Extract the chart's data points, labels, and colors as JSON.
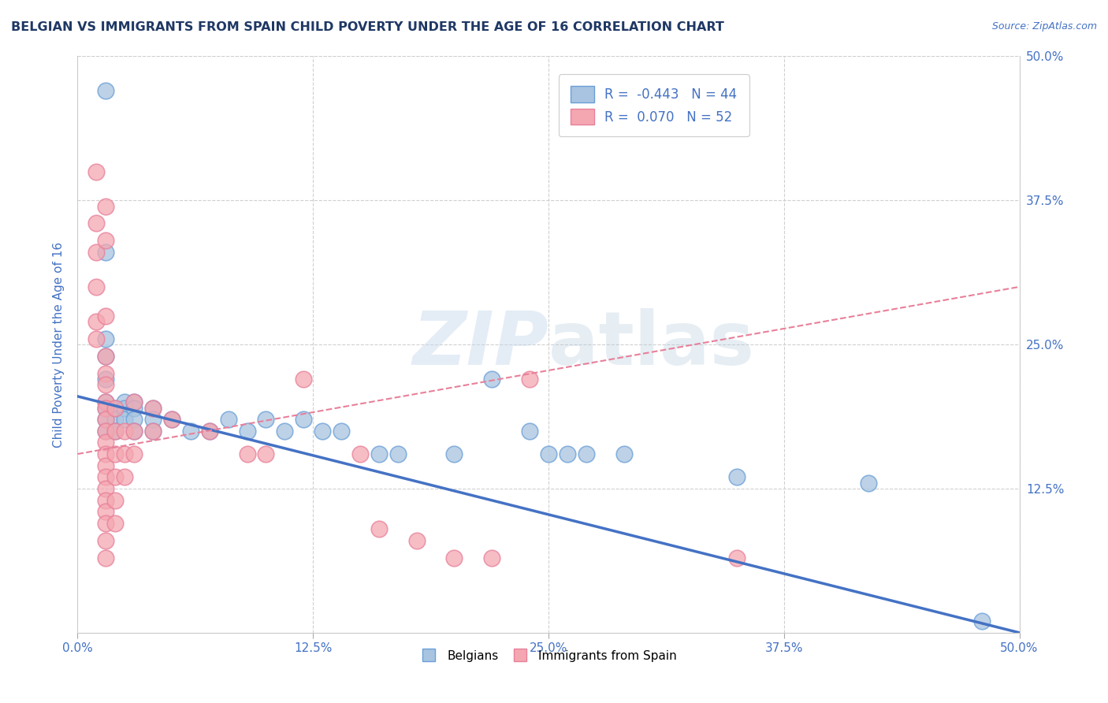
{
  "title": "BELGIAN VS IMMIGRANTS FROM SPAIN CHILD POVERTY UNDER THE AGE OF 16 CORRELATION CHART",
  "source": "Source: ZipAtlas.com",
  "ylabel": "Child Poverty Under the Age of 16",
  "xlim": [
    0.0,
    0.5
  ],
  "ylim": [
    0.0,
    0.5
  ],
  "xtick_vals": [
    0.0,
    0.125,
    0.25,
    0.375,
    0.5
  ],
  "ytick_vals": [
    0.125,
    0.25,
    0.375,
    0.5
  ],
  "right_ytick_vals": [
    0.125,
    0.25,
    0.375,
    0.5
  ],
  "legend_labels": [
    "Belgians",
    "Immigrants from Spain"
  ],
  "R_blue": -0.443,
  "N_blue": 44,
  "R_pink": 0.07,
  "N_pink": 52,
  "blue_color": "#a8c4e0",
  "pink_color": "#f4a7b0",
  "blue_edge_color": "#6a9fd8",
  "pink_edge_color": "#e8809a",
  "blue_line_color": "#4472c4",
  "pink_line_color": "#e8809a",
  "title_color": "#1f3864",
  "axis_label_color": "#4472c4",
  "grid_color": "#d0d0d0",
  "watermark_color": "#c8d8e8",
  "watermark": "ZIPatlas",
  "blue_scatter": [
    [
      0.015,
      0.47
    ],
    [
      0.015,
      0.33
    ],
    [
      0.015,
      0.255
    ],
    [
      0.015,
      0.24
    ],
    [
      0.015,
      0.22
    ],
    [
      0.015,
      0.2
    ],
    [
      0.015,
      0.195
    ],
    [
      0.015,
      0.185
    ],
    [
      0.015,
      0.175
    ],
    [
      0.02,
      0.195
    ],
    [
      0.02,
      0.185
    ],
    [
      0.02,
      0.175
    ],
    [
      0.025,
      0.2
    ],
    [
      0.025,
      0.195
    ],
    [
      0.025,
      0.185
    ],
    [
      0.03,
      0.2
    ],
    [
      0.03,
      0.195
    ],
    [
      0.03,
      0.185
    ],
    [
      0.03,
      0.175
    ],
    [
      0.04,
      0.195
    ],
    [
      0.04,
      0.185
    ],
    [
      0.04,
      0.175
    ],
    [
      0.05,
      0.185
    ],
    [
      0.06,
      0.175
    ],
    [
      0.07,
      0.175
    ],
    [
      0.08,
      0.185
    ],
    [
      0.09,
      0.175
    ],
    [
      0.1,
      0.185
    ],
    [
      0.11,
      0.175
    ],
    [
      0.12,
      0.185
    ],
    [
      0.13,
      0.175
    ],
    [
      0.14,
      0.175
    ],
    [
      0.16,
      0.155
    ],
    [
      0.17,
      0.155
    ],
    [
      0.2,
      0.155
    ],
    [
      0.22,
      0.22
    ],
    [
      0.24,
      0.175
    ],
    [
      0.25,
      0.155
    ],
    [
      0.26,
      0.155
    ],
    [
      0.27,
      0.155
    ],
    [
      0.29,
      0.155
    ],
    [
      0.35,
      0.135
    ],
    [
      0.42,
      0.13
    ],
    [
      0.48,
      0.01
    ]
  ],
  "pink_scatter": [
    [
      0.01,
      0.4
    ],
    [
      0.01,
      0.355
    ],
    [
      0.01,
      0.33
    ],
    [
      0.01,
      0.3
    ],
    [
      0.01,
      0.27
    ],
    [
      0.01,
      0.255
    ],
    [
      0.015,
      0.37
    ],
    [
      0.015,
      0.34
    ],
    [
      0.015,
      0.275
    ],
    [
      0.015,
      0.24
    ],
    [
      0.015,
      0.225
    ],
    [
      0.015,
      0.215
    ],
    [
      0.015,
      0.2
    ],
    [
      0.015,
      0.195
    ],
    [
      0.015,
      0.185
    ],
    [
      0.015,
      0.175
    ],
    [
      0.015,
      0.165
    ],
    [
      0.015,
      0.155
    ],
    [
      0.015,
      0.145
    ],
    [
      0.015,
      0.135
    ],
    [
      0.015,
      0.125
    ],
    [
      0.015,
      0.115
    ],
    [
      0.015,
      0.105
    ],
    [
      0.015,
      0.095
    ],
    [
      0.015,
      0.08
    ],
    [
      0.015,
      0.065
    ],
    [
      0.02,
      0.195
    ],
    [
      0.02,
      0.175
    ],
    [
      0.02,
      0.155
    ],
    [
      0.02,
      0.135
    ],
    [
      0.02,
      0.115
    ],
    [
      0.02,
      0.095
    ],
    [
      0.025,
      0.175
    ],
    [
      0.025,
      0.155
    ],
    [
      0.025,
      0.135
    ],
    [
      0.03,
      0.2
    ],
    [
      0.03,
      0.175
    ],
    [
      0.03,
      0.155
    ],
    [
      0.04,
      0.195
    ],
    [
      0.04,
      0.175
    ],
    [
      0.05,
      0.185
    ],
    [
      0.07,
      0.175
    ],
    [
      0.09,
      0.155
    ],
    [
      0.1,
      0.155
    ],
    [
      0.12,
      0.22
    ],
    [
      0.15,
      0.155
    ],
    [
      0.16,
      0.09
    ],
    [
      0.18,
      0.08
    ],
    [
      0.2,
      0.065
    ],
    [
      0.22,
      0.065
    ],
    [
      0.24,
      0.22
    ],
    [
      0.35,
      0.065
    ]
  ]
}
